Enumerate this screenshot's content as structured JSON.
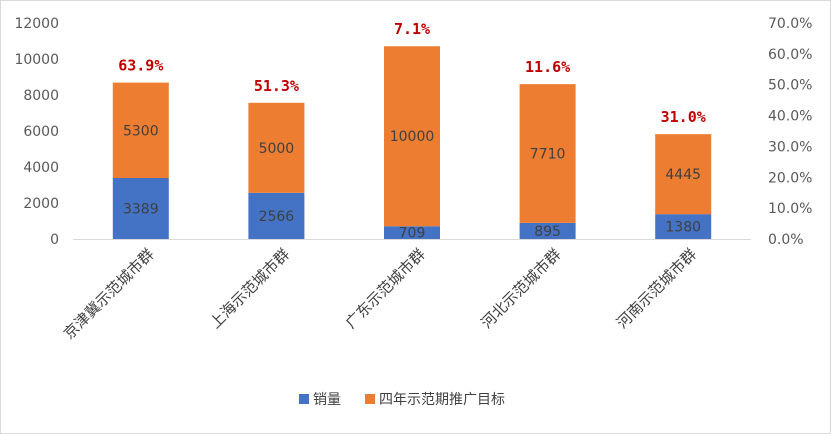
{
  "chart_data": {
    "type": "bar",
    "stacked": true,
    "categories": [
      "京津冀示范城市群",
      "上海示范城市群",
      "广东示范城市群",
      "河北示范城市群",
      "河南示范城市群"
    ],
    "series": [
      {
        "name": "销量",
        "values": [
          3389,
          2566,
          709,
          895,
          1380
        ],
        "color": "#4472c4"
      },
      {
        "name": "四年示范期推广目标",
        "values": [
          5300,
          5000,
          10000,
          7710,
          4445
        ],
        "color": "#ed7d31"
      }
    ],
    "percent_labels": [
      "63.9%",
      "51.3%",
      "7.1%",
      "11.6%",
      "31.0%"
    ],
    "ylim": [
      0,
      12000
    ],
    "y_ticks": [
      "0",
      "2000",
      "4000",
      "6000",
      "8000",
      "10000",
      "12000"
    ],
    "y2lim": [
      0,
      70
    ],
    "y2_ticks": [
      "0.0%",
      "10.0%",
      "20.0%",
      "30.0%",
      "40.0%",
      "50.0%",
      "60.0%",
      "70.0%"
    ],
    "grid": false,
    "legend_position": "bottom",
    "pct_color": "#c00000"
  }
}
